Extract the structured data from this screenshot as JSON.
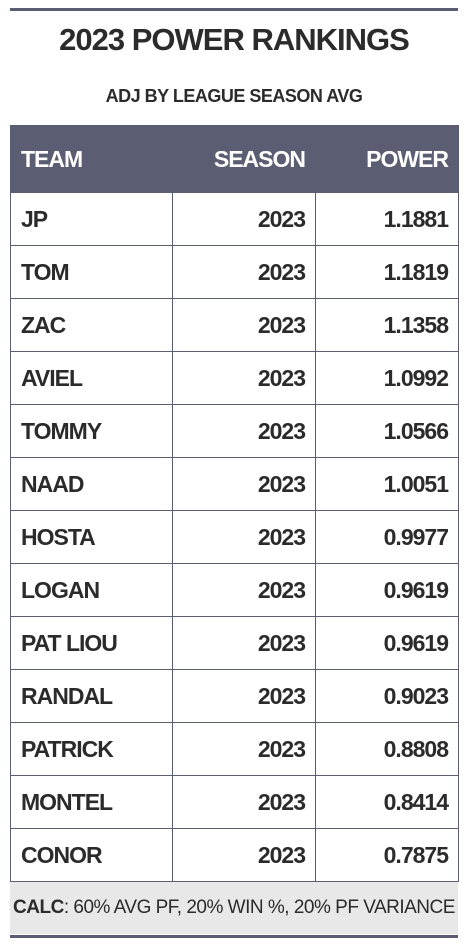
{
  "header": {
    "title": "2023 POWER RANKINGS",
    "subtitle": "ADJ BY LEAGUE SEASON AVG"
  },
  "table": {
    "columns": [
      "TEAM",
      "SEASON",
      "POWER"
    ],
    "rows": [
      [
        "JP",
        "2023",
        "1.1881"
      ],
      [
        "TOM",
        "2023",
        "1.1819"
      ],
      [
        "ZAC",
        "2023",
        "1.1358"
      ],
      [
        "AVIEL",
        "2023",
        "1.0992"
      ],
      [
        "TOMMY",
        "2023",
        "1.0566"
      ],
      [
        "NAAD",
        "2023",
        "1.0051"
      ],
      [
        "HOSTA",
        "2023",
        "0.9977"
      ],
      [
        "LOGAN",
        "2023",
        "0.9619"
      ],
      [
        "PAT LIOU",
        "2023",
        "0.9619"
      ],
      [
        "RANDAL",
        "2023",
        "0.9023"
      ],
      [
        "PATRICK",
        "2023",
        "0.8808"
      ],
      [
        "MONTEL",
        "2023",
        "0.8414"
      ],
      [
        "CONOR",
        "2023",
        "0.7875"
      ]
    ]
  },
  "footer": {
    "label": "CALC",
    "text": ": 60% AVG PF, 20% WIN %, 20% PF VARIANCE"
  }
}
